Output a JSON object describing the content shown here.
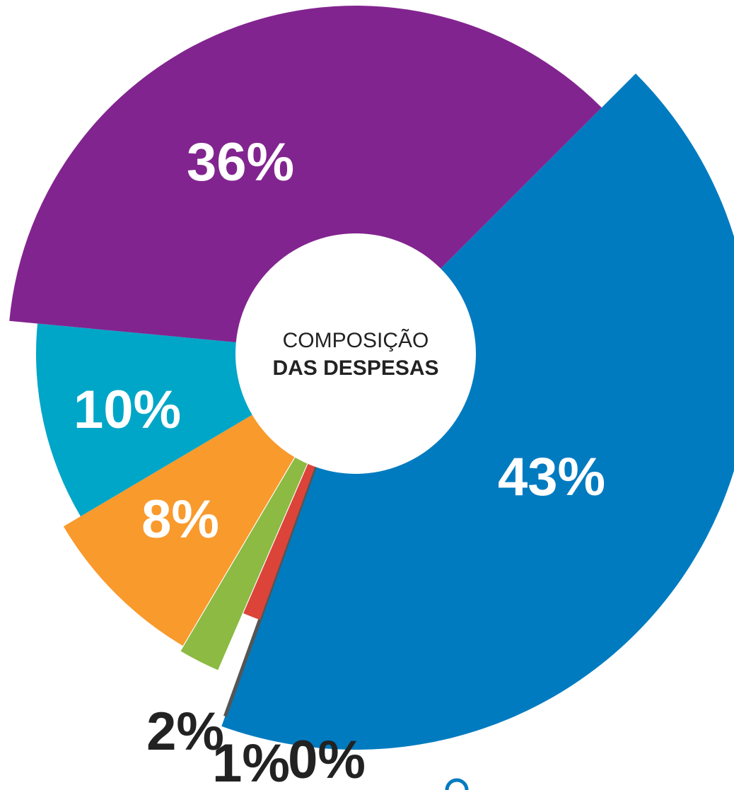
{
  "chart_data": {
    "type": "pie",
    "title_lines": [
      "COMPOSIÇÃO",
      "DAS DESPESAS"
    ],
    "values": [
      43,
      0,
      1,
      2,
      8,
      10,
      36
    ],
    "value_labels": [
      "43%",
      "0%",
      "1%",
      "2%",
      "8%",
      "10%",
      "36%"
    ],
    "colors": [
      "#017bc0",
      "#555555",
      "#dc4439",
      "#8cba43",
      "#f99a2d",
      "#00a6c7",
      "#82248f"
    ]
  }
}
